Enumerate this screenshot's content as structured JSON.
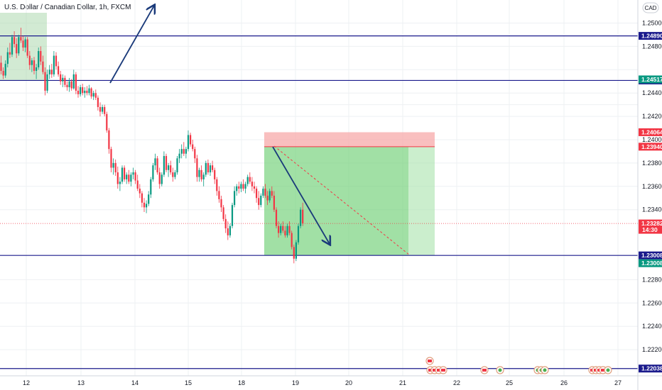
{
  "chart_title": "U.S. Dollar / Canadian Dollar, 1h, FXCM",
  "currency_label": "CAD",
  "chart_data": {
    "type": "candlestick",
    "title": "U.S. Dollar / Canadian Dollar, 1h, FXCM",
    "ylim": [
      1.219,
      1.2521
    ],
    "x_tick_labels": [
      "12",
      "13",
      "14",
      "15",
      "18",
      "19",
      "20",
      "21",
      "22",
      "25",
      "26",
      "27"
    ],
    "y_tick_labels": [
      "1.25000",
      "1.24800",
      "1.24400",
      "1.24200",
      "1.24000",
      "1.23800",
      "1.23600",
      "1.23400",
      "1.22800",
      "1.22600",
      "1.22400",
      "1.22200"
    ],
    "horizontal_levels": [
      {
        "label": "1.24890",
        "value": 1.2489,
        "color": "#1a1a8c"
      },
      {
        "label": "1.24508",
        "value": 1.24508,
        "color": "#1a1a8c"
      },
      {
        "label": "1.23008",
        "value": 1.23008,
        "color": "#1a1a8c"
      },
      {
        "label": "1.22038",
        "value": 1.22038,
        "color": "#1a1a8c"
      }
    ],
    "price_badges": [
      {
        "label": "1.24517",
        "value": 1.24517,
        "color": "#089981"
      },
      {
        "label": "1.24064",
        "value": 1.24064,
        "color": "#f23645"
      },
      {
        "label": "1.23940",
        "value": 1.2394,
        "color": "#f23645"
      },
      {
        "label": "1.23008",
        "value": 1.23008,
        "color": "#089981"
      }
    ],
    "current_price": {
      "label": "1.23282",
      "time_left": "14:30",
      "value": 1.23282,
      "color": "#f23645"
    },
    "short_position": {
      "entry": 1.2394,
      "stop": 1.24064,
      "target": 1.23008
    },
    "candles_per_day": 24,
    "candles": [
      [
        1.2466,
        1.2472,
        1.2456,
        1.2459
      ],
      [
        1.2459,
        1.2462,
        1.2452,
        1.2455
      ],
      [
        1.2455,
        1.2468,
        1.2453,
        1.2465
      ],
      [
        1.2465,
        1.2479,
        1.2462,
        1.2475
      ],
      [
        1.2475,
        1.2483,
        1.247,
        1.2473
      ],
      [
        1.2473,
        1.249,
        1.2471,
        1.2488
      ],
      [
        1.2488,
        1.2493,
        1.2479,
        1.2482
      ],
      [
        1.2482,
        1.2487,
        1.247,
        1.2474
      ],
      [
        1.2474,
        1.249,
        1.2472,
        1.2488
      ],
      [
        1.2488,
        1.2496,
        1.2483,
        1.2485
      ],
      [
        1.2485,
        1.2489,
        1.2476,
        1.2479
      ],
      [
        1.2479,
        1.2488,
        1.2475,
        1.2486
      ],
      [
        1.2486,
        1.2488,
        1.247,
        1.2472
      ],
      [
        1.2472,
        1.2476,
        1.246,
        1.2464
      ],
      [
        1.2464,
        1.247,
        1.2458,
        1.2468
      ],
      [
        1.2468,
        1.2471,
        1.2456,
        1.2459
      ],
      [
        1.2459,
        1.2465,
        1.2452,
        1.2462
      ],
      [
        1.2462,
        1.2479,
        1.246,
        1.2476
      ],
      [
        1.2476,
        1.248,
        1.2464,
        1.2467
      ],
      [
        1.2467,
        1.2472,
        1.2456,
        1.2458
      ],
      [
        1.2458,
        1.2462,
        1.2438,
        1.2442
      ],
      [
        1.2442,
        1.246,
        1.244,
        1.2456
      ],
      [
        1.2456,
        1.2464,
        1.2452,
        1.246
      ],
      [
        1.246,
        1.2465,
        1.2453,
        1.2456
      ],
      [
        1.2456,
        1.2476,
        1.2454,
        1.2472
      ],
      [
        1.2472,
        1.2475,
        1.246,
        1.2463
      ],
      [
        1.2463,
        1.2467,
        1.2454,
        1.2456
      ],
      [
        1.2456,
        1.2459,
        1.2447,
        1.245
      ],
      [
        1.245,
        1.2456,
        1.2445,
        1.2453
      ],
      [
        1.2453,
        1.2455,
        1.2445,
        1.2447
      ],
      [
        1.2447,
        1.245,
        1.2442,
        1.2445
      ],
      [
        1.2445,
        1.2453,
        1.2441,
        1.245
      ],
      [
        1.245,
        1.2452,
        1.2442,
        1.2444
      ],
      [
        1.2444,
        1.246,
        1.2443,
        1.2456
      ],
      [
        1.2456,
        1.2458,
        1.2439,
        1.2442
      ],
      [
        1.2442,
        1.2446,
        1.2436,
        1.2439
      ],
      [
        1.2439,
        1.2447,
        1.2437,
        1.2445
      ],
      [
        1.2445,
        1.2448,
        1.2438,
        1.244
      ],
      [
        1.244,
        1.2445,
        1.2436,
        1.2442
      ],
      [
        1.2442,
        1.2446,
        1.2438,
        1.244
      ],
      [
        1.244,
        1.2447,
        1.2438,
        1.2444
      ],
      [
        1.2444,
        1.2445,
        1.2435,
        1.2437
      ],
      [
        1.2437,
        1.2442,
        1.2434,
        1.244
      ],
      [
        1.244,
        1.2443,
        1.2434,
        1.2436
      ],
      [
        1.2436,
        1.2438,
        1.2425,
        1.2428
      ],
      [
        1.2428,
        1.2432,
        1.242,
        1.2424
      ],
      [
        1.2424,
        1.243,
        1.2422,
        1.2428
      ],
      [
        1.2428,
        1.243,
        1.242,
        1.2422
      ],
      [
        1.2422,
        1.2424,
        1.2406,
        1.2408
      ],
      [
        1.2408,
        1.241,
        1.2388,
        1.2392
      ],
      [
        1.2392,
        1.2394,
        1.2372,
        1.2376
      ],
      [
        1.2376,
        1.2384,
        1.237,
        1.238
      ],
      [
        1.238,
        1.2383,
        1.2369,
        1.2372
      ],
      [
        1.2372,
        1.2377,
        1.2358,
        1.2362
      ],
      [
        1.2362,
        1.2368,
        1.2356,
        1.2364
      ],
      [
        1.2364,
        1.2378,
        1.2362,
        1.2376
      ],
      [
        1.2376,
        1.2378,
        1.2364,
        1.2366
      ],
      [
        1.2366,
        1.2372,
        1.2362,
        1.237
      ],
      [
        1.237,
        1.2374,
        1.2362,
        1.2364
      ],
      [
        1.2364,
        1.2372,
        1.236,
        1.237
      ],
      [
        1.237,
        1.2376,
        1.2366,
        1.2372
      ],
      [
        1.2372,
        1.2374,
        1.2362,
        1.2365
      ],
      [
        1.2365,
        1.237,
        1.2356,
        1.2358
      ],
      [
        1.2358,
        1.2362,
        1.235,
        1.2354
      ],
      [
        1.2354,
        1.2356,
        1.2342,
        1.2346
      ],
      [
        1.2346,
        1.235,
        1.2338,
        1.2342
      ],
      [
        1.2342,
        1.2348,
        1.2337,
        1.2345
      ],
      [
        1.2345,
        1.2356,
        1.2343,
        1.2353
      ],
      [
        1.2353,
        1.2368,
        1.235,
        1.2366
      ],
      [
        1.2366,
        1.238,
        1.2364,
        1.2378
      ],
      [
        1.2378,
        1.2388,
        1.2374,
        1.2384
      ],
      [
        1.2384,
        1.2386,
        1.237,
        1.2372
      ],
      [
        1.2372,
        1.2376,
        1.2358,
        1.2362
      ],
      [
        1.2362,
        1.2372,
        1.236,
        1.237
      ],
      [
        1.237,
        1.239,
        1.2368,
        1.2386
      ],
      [
        1.2386,
        1.2388,
        1.2372,
        1.2374
      ],
      [
        1.2374,
        1.238,
        1.2368,
        1.2378
      ],
      [
        1.2378,
        1.2382,
        1.237,
        1.2372
      ],
      [
        1.2372,
        1.2376,
        1.2364,
        1.2368
      ],
      [
        1.2368,
        1.2374,
        1.2366,
        1.2372
      ],
      [
        1.2372,
        1.2386,
        1.237,
        1.2384
      ],
      [
        1.2384,
        1.2392,
        1.238,
        1.2388
      ],
      [
        1.2388,
        1.2396,
        1.2384,
        1.2392
      ],
      [
        1.2392,
        1.2398,
        1.2386,
        1.2388
      ],
      [
        1.2388,
        1.2394,
        1.2384,
        1.2392
      ],
      [
        1.2392,
        1.2408,
        1.239,
        1.2404
      ],
      [
        1.2404,
        1.2406,
        1.2394,
        1.2396
      ],
      [
        1.2396,
        1.24,
        1.239,
        1.2392
      ],
      [
        1.2392,
        1.2394,
        1.238,
        1.2384
      ],
      [
        1.2384,
        1.2387,
        1.2364,
        1.2368
      ],
      [
        1.2368,
        1.2376,
        1.2364,
        1.2374
      ],
      [
        1.2374,
        1.2378,
        1.2364,
        1.2366
      ],
      [
        1.2366,
        1.2372,
        1.236,
        1.237
      ],
      [
        1.237,
        1.2382,
        1.2368,
        1.238
      ],
      [
        1.238,
        1.2383,
        1.237,
        1.2372
      ],
      [
        1.2372,
        1.238,
        1.2369,
        1.2378
      ],
      [
        1.2378,
        1.2382,
        1.2372,
        1.2374
      ],
      [
        1.2374,
        1.2376,
        1.2362,
        1.2366
      ],
      [
        1.2366,
        1.2368,
        1.2352,
        1.2356
      ],
      [
        1.2356,
        1.236,
        1.2346,
        1.2349
      ],
      [
        1.2349,
        1.2352,
        1.2338,
        1.2342
      ],
      [
        1.2342,
        1.2344,
        1.233,
        1.2332
      ],
      [
        1.2332,
        1.2336,
        1.232,
        1.2324
      ],
      [
        1.2324,
        1.233,
        1.2314,
        1.2318
      ],
      [
        1.2318,
        1.2328,
        1.2316,
        1.2326
      ],
      [
        1.2326,
        1.2346,
        1.2324,
        1.2344
      ],
      [
        1.2344,
        1.236,
        1.2342,
        1.2356
      ],
      [
        1.2356,
        1.2362,
        1.2352,
        1.236
      ],
      [
        1.236,
        1.2364,
        1.2354,
        1.2358
      ],
      [
        1.2358,
        1.2364,
        1.2355,
        1.2362
      ],
      [
        1.2362,
        1.2366,
        1.2356,
        1.2358
      ],
      [
        1.2358,
        1.2364,
        1.2354,
        1.2362
      ],
      [
        1.2362,
        1.237,
        1.236,
        1.2368
      ],
      [
        1.2368,
        1.2372,
        1.2362,
        1.2364
      ],
      [
        1.2364,
        1.2368,
        1.2356,
        1.236
      ],
      [
        1.236,
        1.2364,
        1.2354,
        1.2358
      ],
      [
        1.2358,
        1.236,
        1.2346,
        1.235
      ],
      [
        1.235,
        1.2356,
        1.234,
        1.2344
      ],
      [
        1.2344,
        1.2354,
        1.2342,
        1.2352
      ],
      [
        1.2352,
        1.236,
        1.235,
        1.2358
      ],
      [
        1.2358,
        1.2362,
        1.235,
        1.2352
      ],
      [
        1.2352,
        1.2356,
        1.2344,
        1.2348
      ],
      [
        1.2348,
        1.2358,
        1.2346,
        1.2356
      ],
      [
        1.2356,
        1.236,
        1.235,
        1.2352
      ],
      [
        1.2352,
        1.2356,
        1.2338,
        1.234
      ],
      [
        1.234,
        1.2342,
        1.2324,
        1.2326
      ],
      [
        1.2326,
        1.233,
        1.2316,
        1.232
      ],
      [
        1.232,
        1.2328,
        1.2318,
        1.2326
      ],
      [
        1.2326,
        1.233,
        1.232,
        1.2322
      ],
      [
        1.2322,
        1.2326,
        1.2316,
        1.2318
      ],
      [
        1.2318,
        1.2328,
        1.2316,
        1.2326
      ],
      [
        1.2326,
        1.233,
        1.2318,
        1.232
      ],
      [
        1.232,
        1.2322,
        1.2306,
        1.2308
      ],
      [
        1.2308,
        1.231,
        1.2294,
        1.2298
      ],
      [
        1.2298,
        1.2314,
        1.2296,
        1.2312
      ],
      [
        1.2312,
        1.2328,
        1.231,
        1.2326
      ],
      [
        1.2326,
        1.2342,
        1.2324,
        1.234
      ],
      [
        1.234,
        1.2346,
        1.2326,
        1.23282
      ]
    ]
  },
  "time_axis_labels": [
    "12",
    "13",
    "14",
    "15",
    "18",
    "19",
    "20",
    "21",
    "22",
    "25",
    "26",
    "27"
  ],
  "colors": {
    "up": "#089981",
    "down": "#f23645",
    "level_line": "#1a1a8c",
    "arrow": "#1a3a7a"
  },
  "event_icons": [
    "flag-canada-icon",
    "currency-dollar-icon"
  ]
}
